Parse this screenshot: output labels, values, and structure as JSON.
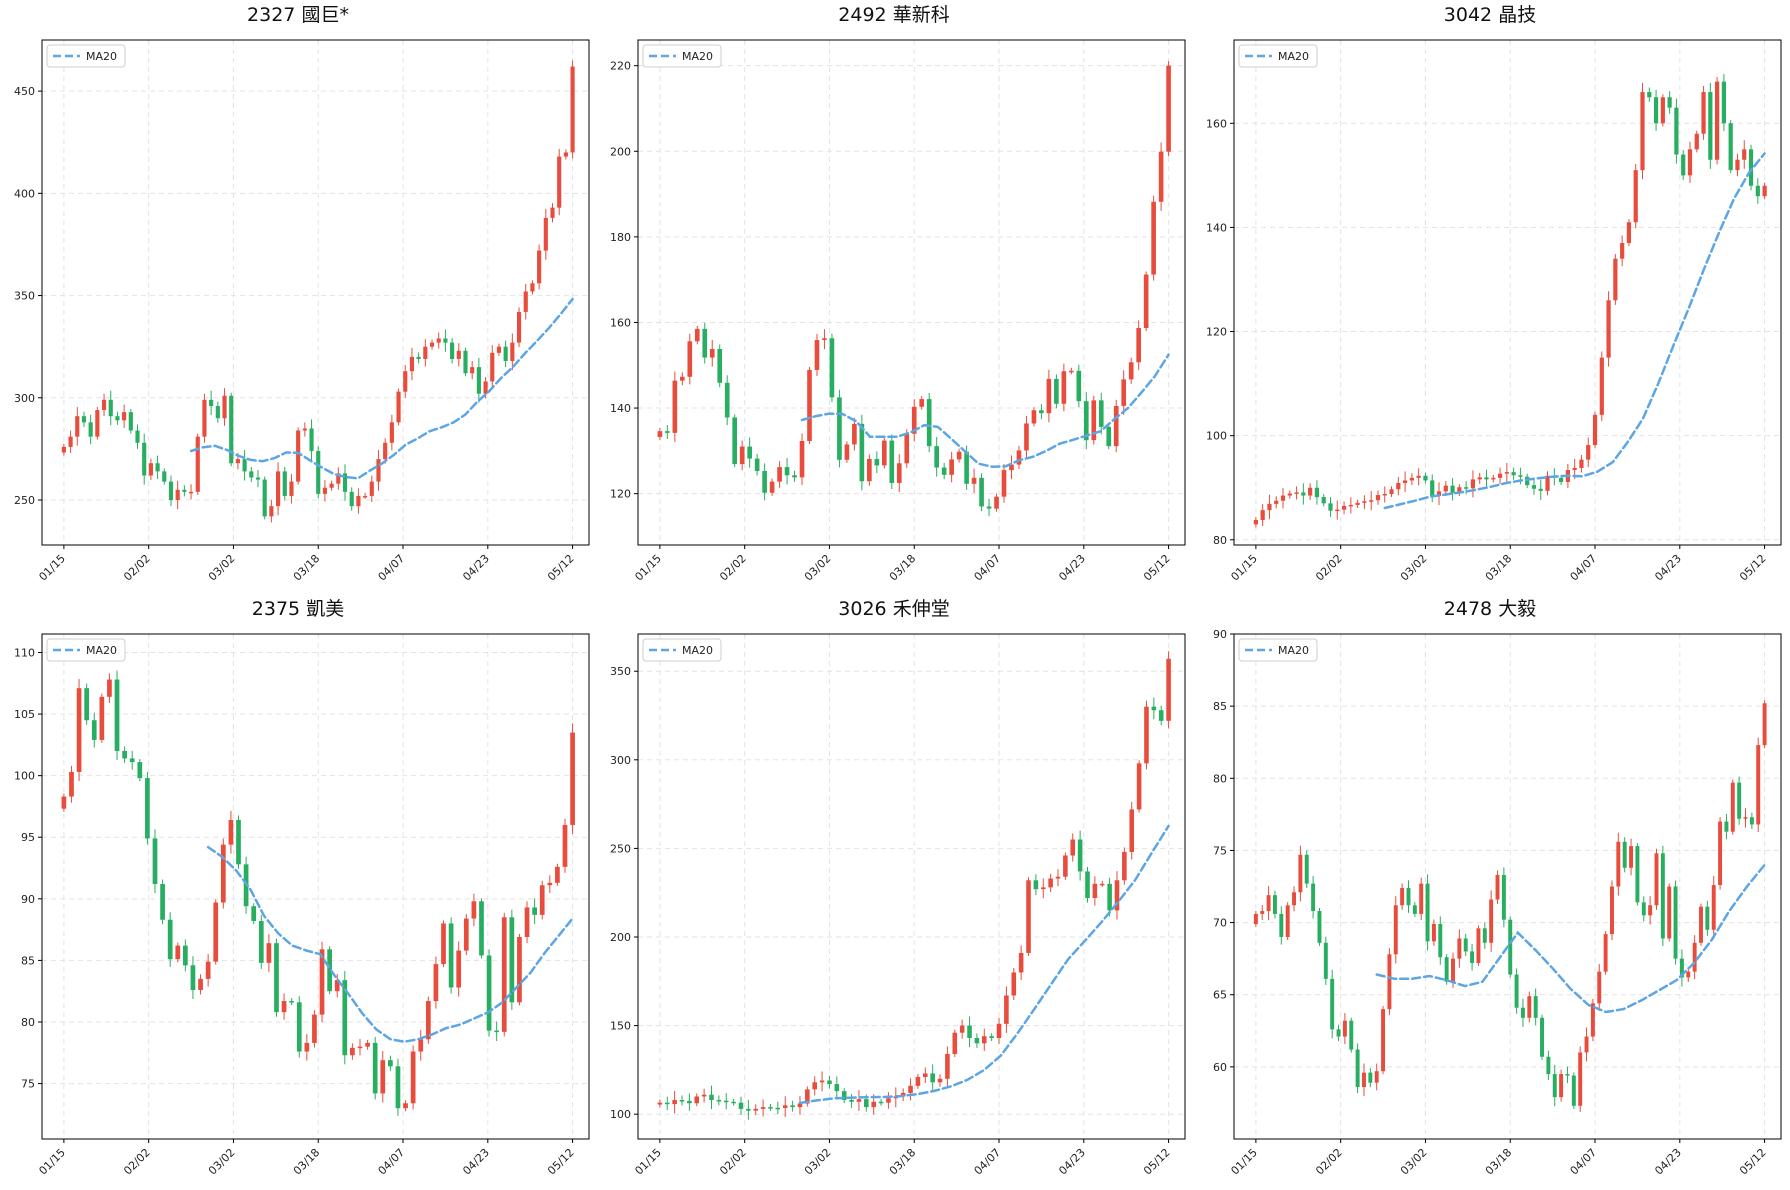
{
  "chart_data": [
    {
      "type": "candlestick",
      "title": "2327 國巨*",
      "legend": [
        "MA20"
      ],
      "legend_position": "top-left",
      "grid": true,
      "ylim": [
        228,
        475
      ],
      "yticks": [
        250,
        300,
        350,
        400,
        450
      ],
      "x_tick_labels": [
        "01/15",
        "02/02",
        "03/02",
        "03/18",
        "04/07",
        "04/23",
        "05/12"
      ],
      "close": [
        276,
        281,
        291,
        288,
        281,
        294,
        299,
        291,
        289,
        293,
        284,
        278,
        262,
        268,
        264,
        259,
        250,
        255,
        254,
        254,
        281,
        299,
        296,
        290,
        301,
        268,
        270,
        264,
        261,
        260,
        242,
        247,
        264,
        252,
        259,
        284,
        285,
        274,
        253,
        256,
        258,
        263,
        254,
        247,
        252,
        252,
        259,
        270,
        278,
        288,
        303,
        313,
        320,
        319,
        325,
        327,
        329,
        327,
        319,
        323,
        312,
        315,
        302,
        308,
        322,
        325,
        318,
        327,
        342,
        352,
        356,
        372,
        388,
        393,
        418,
        420,
        462
      ],
      "ma20": [
        274.0,
        275.8,
        276.5,
        274.5,
        271.6,
        269.6,
        269.0,
        270.5,
        273.3,
        273.0,
        269.3,
        265.8,
        262.7,
        261.2,
        260.6,
        264.4,
        267.8,
        272.0,
        277.1,
        280.1,
        283.6,
        285.5,
        287.9,
        291.8,
        298.0,
        303.2,
        309.7,
        315.1,
        321.7,
        327.7,
        334.0,
        341.0,
        348.3
      ]
    },
    {
      "type": "candlestick",
      "title": "2492 華新科",
      "legend": [
        "MA20"
      ],
      "legend_position": "top-left",
      "grid": true,
      "ylim": [
        108,
        226
      ],
      "yticks": [
        120,
        140,
        160,
        180,
        200,
        220
      ],
      "x_tick_labels": [
        "01/15",
        "02/02",
        "03/02",
        "03/18",
        "04/07",
        "04/23",
        "05/12"
      ],
      "close": [
        134.6,
        134.2,
        146.4,
        147.3,
        155.6,
        158.5,
        151.8,
        153.8,
        145.9,
        137.8,
        126.9,
        131.0,
        128.2,
        125.3,
        120.2,
        122.8,
        126.2,
        124.3,
        123.8,
        132.3,
        148.9,
        155.9,
        156.3,
        142.5,
        127.9,
        131.5,
        136.3,
        122.9,
        128.1,
        126.6,
        132.4,
        122.5,
        127.1,
        134.0,
        140.3,
        142.1,
        131.1,
        126.1,
        124.4,
        128.0,
        129.8,
        122.3,
        123.7,
        117.0,
        116.5,
        119.3,
        125.5,
        126.8,
        130.1,
        136.4,
        139.5,
        138.8,
        146.8,
        141.0,
        148.6,
        148.7,
        141.6,
        132.5,
        141.8,
        135.6,
        131.1,
        140.5,
        146.7,
        150.7,
        158.7,
        171.2,
        188.2,
        199.9,
        220.0
      ],
      "ma20": [
        137.2,
        138.1,
        138.7,
        138.6,
        136.9,
        133.3,
        133.3,
        133.3,
        134.3,
        136.0,
        135.6,
        132.8,
        129.9,
        127.0,
        126.3,
        126.4,
        127.8,
        128.6,
        130.0,
        131.7,
        132.6,
        133.6,
        134.6,
        137.4,
        140.0,
        143.6,
        147.5,
        152.5
      ]
    },
    {
      "type": "candlestick",
      "title": "3042 晶技",
      "legend": [
        "MA20"
      ],
      "legend_position": "top-left",
      "grid": true,
      "ylim": [
        79,
        176
      ],
      "yticks": [
        80,
        100,
        120,
        140,
        160
      ],
      "x_tick_labels": [
        "01/15",
        "02/02",
        "03/02",
        "03/18",
        "04/07",
        "04/23",
        "05/12"
      ],
      "close": [
        83.8,
        85.7,
        86.9,
        87.5,
        88.5,
        88.9,
        89.1,
        88.5,
        90.0,
        88.2,
        87.0,
        85.6,
        85.8,
        86.5,
        86.7,
        87.1,
        87.4,
        87.6,
        88.6,
        88.8,
        89.7,
        90.9,
        91.4,
        91.9,
        92.3,
        91.4,
        88.4,
        89.3,
        90.4,
        89.0,
        90.1,
        89.9,
        91.6,
        92.0,
        91.6,
        91.9,
        92.7,
        93.0,
        92.4,
        92.1,
        90.5,
        89.8,
        89.4,
        92.3,
        91.9,
        91.1,
        93.4,
        93.8,
        95.4,
        98.2,
        104.0,
        115.0,
        126.0,
        134.0,
        137.0,
        141.0,
        151.0,
        166.0,
        165.0,
        160.0,
        165.0,
        163.0,
        154.0,
        150.0,
        155.0,
        158.0,
        166.0,
        153.0,
        168.0,
        160.0,
        151.0,
        153.0,
        155.0,
        148.0,
        146.0,
        148.0
      ],
      "ma20": [
        86.1,
        86.8,
        87.5,
        88.3,
        88.7,
        89.1,
        89.6,
        90.2,
        90.9,
        91.4,
        91.8,
        92.1,
        92.3,
        92.2,
        93.1,
        94.9,
        98.8,
        103.3,
        110.0,
        117.3,
        124.4,
        131.9,
        139.0,
        145.6,
        150.6,
        154.2
      ]
    },
    {
      "type": "candlestick",
      "title": "2375 凱美",
      "legend": [
        "MA20"
      ],
      "legend_position": "top-left",
      "grid": true,
      "ylim": [
        70.5,
        111.5
      ],
      "yticks": [
        75,
        80,
        85,
        90,
        95,
        100,
        105,
        110
      ],
      "x_tick_labels": [
        "01/15",
        "02/02",
        "03/02",
        "03/18",
        "04/07",
        "04/23",
        "05/12"
      ],
      "close": [
        98.3,
        100.3,
        107.1,
        104.5,
        102.9,
        106.4,
        107.8,
        102.0,
        101.4,
        101.1,
        99.8,
        94.9,
        91.2,
        88.3,
        85.1,
        86.2,
        84.6,
        82.6,
        83.5,
        84.9,
        89.7,
        94.4,
        96.4,
        92.8,
        89.4,
        88.2,
        84.8,
        86.4,
        80.8,
        81.7,
        81.6,
        77.6,
        78.3,
        80.6,
        85.9,
        82.5,
        83.4,
        77.3,
        77.9,
        78.0,
        78.3,
        74.2,
        76.9,
        76.4,
        73.0,
        73.4,
        77.6,
        78.6,
        81.7,
        84.7,
        88.0,
        82.8,
        85.8,
        88.4,
        89.8,
        85.4,
        79.3,
        79.2,
        88.5,
        81.6,
        86.9,
        89.3,
        88.7,
        91.1,
        91.3,
        92.6,
        96.0,
        103.5
      ],
      "ma20": [
        94.2,
        93.4,
        92.3,
        90.8,
        88.6,
        87.2,
        86.2,
        85.8,
        85.5,
        83.8,
        82.3,
        80.7,
        79.4,
        78.6,
        78.4,
        78.6,
        79.0,
        79.5,
        79.8,
        80.3,
        80.8,
        81.6,
        82.8,
        84.0,
        85.6,
        87.0,
        88.4
      ]
    },
    {
      "type": "candlestick",
      "title": "3026 禾伸堂",
      "legend": [
        "MA20"
      ],
      "legend_position": "top-left",
      "grid": true,
      "ylim": [
        86,
        371
      ],
      "yticks": [
        100,
        150,
        200,
        250,
        300,
        350
      ],
      "x_tick_labels": [
        "01/15",
        "02/02",
        "03/02",
        "03/18",
        "04/07",
        "04/23",
        "05/12"
      ],
      "close": [
        106.5,
        105.7,
        108.0,
        107.5,
        106.2,
        110.0,
        111.0,
        108.0,
        107.6,
        107.0,
        106.5,
        103.0,
        102.0,
        103.0,
        104.0,
        103.6,
        103.5,
        105.0,
        104.0,
        106.0,
        114.0,
        118.0,
        119.0,
        117.0,
        113.0,
        108.0,
        107.0,
        108.5,
        104.0,
        107.0,
        106.5,
        109.0,
        110.0,
        112.0,
        116.0,
        121.0,
        123.0,
        118.0,
        120.0,
        134.0,
        146.0,
        150.0,
        143.0,
        140.0,
        144.0,
        143.0,
        151.0,
        167.0,
        180.0,
        191.0,
        232.0,
        227.0,
        228.0,
        233.0,
        234.0,
        246.0,
        255.0,
        237.0,
        222.0,
        230.0,
        230.0,
        215.0,
        232.0,
        248.0,
        272.0,
        298.0,
        330.0,
        328.0,
        322.0,
        357.0
      ],
      "ma20": [
        106.4,
        107.8,
        108.9,
        109.3,
        109.6,
        109.7,
        110.2,
        111.3,
        113.1,
        115.7,
        119.4,
        125.0,
        133.2,
        145.9,
        159.5,
        173.5,
        187.4,
        197.8,
        208.4,
        219.9,
        232.1,
        247.5,
        262.7
      ]
    },
    {
      "type": "candlestick",
      "title": "2478 大毅",
      "legend": [
        "MA20"
      ],
      "legend_position": "top-left",
      "grid": true,
      "ylim": [
        55,
        90
      ],
      "yticks": [
        60,
        65,
        70,
        75,
        80,
        85,
        90
      ],
      "x_tick_labels": [
        "01/15",
        "02/02",
        "03/02",
        "03/18",
        "04/07",
        "04/23",
        "05/12"
      ],
      "close": [
        70.6,
        70.8,
        71.9,
        70.6,
        69.0,
        71.2,
        72.1,
        74.7,
        72.7,
        70.8,
        68.6,
        66.1,
        62.6,
        62.1,
        63.2,
        61.2,
        58.6,
        59.6,
        58.9,
        59.7,
        64.0,
        67.8,
        71.2,
        72.4,
        71.2,
        70.6,
        72.7,
        68.7,
        69.9,
        67.6,
        65.9,
        67.5,
        68.9,
        68.0,
        67.2,
        69.6,
        68.6,
        71.6,
        73.3,
        70.2,
        66.4,
        64.1,
        63.4,
        64.9,
        63.4,
        60.7,
        59.5,
        57.9,
        59.5,
        59.4,
        57.3,
        61.0,
        62.1,
        64.4,
        66.6,
        69.2,
        72.5,
        75.6,
        73.8,
        75.3,
        71.4,
        70.5,
        71.2,
        74.8,
        68.9,
        72.5,
        67.5,
        66.2,
        66.6,
        68.6,
        71.1,
        69.5,
        72.6,
        77.0,
        76.3,
        79.7,
        77.2,
        77.3,
        76.8,
        82.3,
        85.2
      ],
      "ma20": [
        66.4,
        66.1,
        66.1,
        66.3,
        66.0,
        65.6,
        65.9,
        67.6,
        69.3,
        68.1,
        66.8,
        65.4,
        64.3,
        63.8,
        64.0,
        64.6,
        65.3,
        66.0,
        67.2,
        68.8,
        70.8,
        72.5,
        74.0
      ]
    }
  ]
}
